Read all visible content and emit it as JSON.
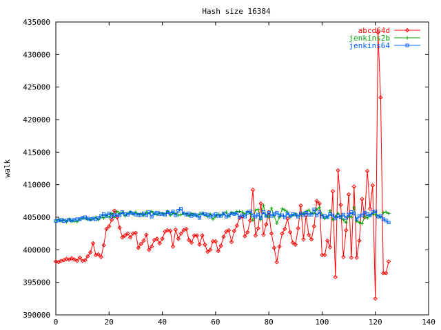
{
  "chart_data": {
    "type": "line",
    "title": "Hash size 16384",
    "xlabel": "",
    "ylabel": "walk",
    "xlim": [
      0,
      140
    ],
    "ylim": [
      390000,
      435000
    ],
    "x_ticks": [
      0,
      20,
      40,
      60,
      80,
      100,
      120,
      140
    ],
    "y_ticks": [
      390000,
      395000,
      400000,
      405000,
      410000,
      415000,
      420000,
      425000,
      430000,
      435000
    ],
    "grid": false,
    "legend_position": "top-right",
    "series": [
      {
        "name": "abcd64d",
        "color": "#ff0000",
        "marker": "diamond",
        "start_x": 0,
        "values": [
          398200,
          398100,
          398300,
          398400,
          398600,
          398500,
          398700,
          398500,
          398300,
          398800,
          398300,
          398400,
          399000,
          399600,
          401000,
          399200,
          399300,
          398900,
          400700,
          403200,
          403600,
          404600,
          406000,
          405000,
          403400,
          401900,
          402200,
          402500,
          401900,
          402500,
          402600,
          400300,
          400900,
          401400,
          402300,
          400000,
          400500,
          401500,
          401700,
          401000,
          401700,
          402800,
          403000,
          402900,
          400500,
          403100,
          401700,
          402500,
          403000,
          403200,
          401500,
          401100,
          402200,
          402200,
          400800,
          402200,
          400800,
          399700,
          400000,
          401300,
          401300,
          399800,
          400600,
          402000,
          402800,
          403000,
          401200,
          402900,
          403700,
          404900,
          405100,
          402100,
          402700,
          404500,
          409200,
          402200,
          403300,
          407100,
          402300,
          403900,
          405800,
          402500,
          400300,
          398100,
          400500,
          402500,
          403200,
          404800,
          402700,
          401100,
          400800,
          403300,
          406800,
          401600,
          405300,
          402300,
          401600,
          403600,
          407500,
          407100,
          399200,
          399200,
          401400,
          400400,
          409000,
          395800,
          412200,
          406900,
          398900,
          403000,
          408500,
          398800,
          409700,
          398800,
          401400,
          407800,
          405000,
          412100,
          406300,
          409900,
          392500,
          433400,
          423400,
          396400,
          396400,
          398200
        ]
      },
      {
        "name": "jenkins2b",
        "color": "#00a000",
        "marker": "plus",
        "start_x": 0,
        "values": [
          404400,
          404700,
          404400,
          404600,
          404300,
          404700,
          404400,
          404400,
          404300,
          404700,
          404900,
          404800,
          404700,
          404600,
          404800,
          405000,
          404600,
          405000,
          404900,
          405300,
          405000,
          405600,
          405000,
          405900,
          405600,
          405700,
          405200,
          405600,
          405800,
          405500,
          405800,
          405400,
          405600,
          405300,
          405800,
          405600,
          405900,
          405500,
          405400,
          405700,
          405600,
          405500,
          405900,
          405300,
          405600,
          405600,
          405300,
          405400,
          405600,
          405500,
          405200,
          405600,
          405400,
          405200,
          405500,
          405600,
          405300,
          405100,
          405500,
          404700,
          405100,
          405500,
          405300,
          405500,
          405800,
          405100,
          405700,
          405600,
          405900,
          405900,
          405800,
          405500,
          405900,
          405600,
          404500,
          406100,
          406200,
          404600,
          406800,
          405200,
          405000,
          406400,
          405200,
          404100,
          405000,
          406300,
          406100,
          405800,
          405000,
          405300,
          405500,
          405200,
          405400,
          405600,
          405900,
          406100,
          405600,
          405600,
          406200,
          406500,
          405400,
          404800,
          405000,
          406000,
          404600,
          405100,
          405600,
          405100,
          404600,
          404200,
          405200,
          405000,
          406500,
          404400,
          404200,
          404000,
          405100,
          404900,
          405300,
          405500,
          405400,
          405200,
          405000,
          405700,
          405800,
          405600
        ]
      },
      {
        "name": "jenkins64",
        "color": "#0060ff",
        "marker": "square",
        "start_x": 0,
        "values": [
          404400,
          404500,
          404600,
          404400,
          404500,
          404600,
          404500,
          404600,
          404700,
          404700,
          404900,
          405000,
          404800,
          404700,
          404800,
          404700,
          404900,
          405200,
          405500,
          405200,
          405600,
          405100,
          405400,
          405300,
          405300,
          405800,
          405500,
          405400,
          405700,
          405600,
          405400,
          405400,
          405300,
          405600,
          405300,
          405800,
          405100,
          405600,
          405700,
          405500,
          405500,
          405400,
          405800,
          405600,
          405900,
          405300,
          406000,
          406300,
          405600,
          405400,
          405600,
          405200,
          405400,
          405300,
          404900,
          405600,
          405500,
          405400,
          405100,
          405300,
          405500,
          405200,
          405200,
          405600,
          405100,
          405300,
          405600,
          405500,
          405600,
          405000,
          405300,
          405100,
          405700,
          405900,
          405300,
          405100,
          405400,
          404900,
          405800,
          405200,
          405700,
          405200,
          405500,
          405700,
          405300,
          405300,
          405000,
          405600,
          405200,
          405500,
          405400,
          405100,
          405600,
          405300,
          405700,
          405400,
          405400,
          406200,
          405300,
          405800,
          405100,
          405200,
          405000,
          405500,
          405300,
          404800,
          405200,
          405000,
          405400,
          404900,
          405400,
          405800,
          405600,
          404700,
          405200,
          405300,
          405700,
          405500,
          405300,
          405800,
          405900,
          405100,
          405200,
          404700,
          404500,
          404200
        ]
      }
    ]
  }
}
